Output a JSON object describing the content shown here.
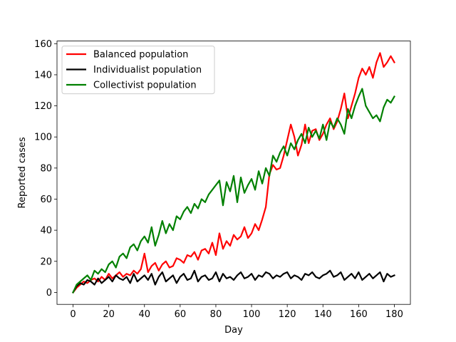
{
  "chart_data": {
    "type": "line",
    "title": "",
    "xlabel": "Day",
    "ylabel": "Reported cases",
    "xlim": [
      -9,
      189
    ],
    "ylim": [
      -7.7,
      161.7
    ],
    "xticks": [
      0,
      20,
      40,
      60,
      80,
      100,
      120,
      140,
      160,
      180
    ],
    "yticks": [
      0,
      20,
      40,
      60,
      80,
      100,
      120,
      140,
      160
    ],
    "grid": false,
    "legend_position": "upper-left",
    "series": [
      {
        "name": "Balanced population",
        "color": "#ff0000",
        "x": [
          0,
          2,
          4,
          6,
          8,
          10,
          12,
          14,
          16,
          18,
          20,
          22,
          24,
          26,
          28,
          30,
          32,
          34,
          36,
          38,
          40,
          42,
          44,
          46,
          48,
          50,
          52,
          54,
          56,
          58,
          60,
          62,
          64,
          66,
          68,
          70,
          72,
          74,
          76,
          78,
          80,
          82,
          84,
          86,
          88,
          90,
          92,
          94,
          96,
          98,
          100,
          102,
          104,
          106,
          108,
          110,
          112,
          114,
          116,
          118,
          120,
          122,
          124,
          126,
          128,
          130,
          132,
          134,
          136,
          138,
          140,
          142,
          144,
          146,
          148,
          150,
          152,
          154,
          156,
          158,
          160,
          162,
          164,
          166,
          168,
          170,
          172,
          174,
          176,
          178,
          180
        ],
        "y": [
          0,
          3,
          5,
          7,
          6,
          8,
          9,
          7,
          10,
          8,
          12,
          9,
          11,
          13,
          10,
          12,
          11,
          14,
          12,
          15,
          25,
          13,
          17,
          19,
          14,
          18,
          20,
          16,
          17,
          22,
          21,
          19,
          24,
          23,
          26,
          21,
          27,
          28,
          25,
          32,
          24,
          38,
          28,
          33,
          30,
          37,
          34,
          36,
          42,
          35,
          38,
          44,
          40,
          47,
          55,
          76,
          82,
          79,
          80,
          88,
          98,
          108,
          100,
          88,
          95,
          108,
          96,
          104,
          105,
          98,
          102,
          108,
          112,
          105,
          110,
          118,
          128,
          112,
          120,
          128,
          138,
          144,
          140,
          145,
          138,
          148,
          154,
          145,
          148,
          152,
          148
        ]
      },
      {
        "name": "Individualist population",
        "color": "#000000",
        "x": [
          0,
          2,
          4,
          6,
          8,
          10,
          12,
          14,
          16,
          18,
          20,
          22,
          24,
          26,
          28,
          30,
          32,
          34,
          36,
          38,
          40,
          42,
          44,
          46,
          48,
          50,
          52,
          54,
          56,
          58,
          60,
          62,
          64,
          66,
          68,
          70,
          72,
          74,
          76,
          78,
          80,
          82,
          84,
          86,
          88,
          90,
          92,
          94,
          96,
          98,
          100,
          102,
          104,
          106,
          108,
          110,
          112,
          114,
          116,
          118,
          120,
          122,
          124,
          126,
          128,
          130,
          132,
          134,
          136,
          138,
          140,
          142,
          144,
          146,
          148,
          150,
          152,
          154,
          156,
          158,
          160,
          162,
          164,
          166,
          168,
          170,
          172,
          174,
          176,
          178,
          180
        ],
        "y": [
          0,
          4,
          6,
          5,
          8,
          7,
          5,
          9,
          6,
          8,
          10,
          7,
          11,
          9,
          8,
          10,
          6,
          12,
          7,
          9,
          11,
          8,
          12,
          5,
          10,
          13,
          7,
          9,
          11,
          6,
          10,
          12,
          8,
          9,
          14,
          7,
          10,
          11,
          8,
          9,
          13,
          7,
          12,
          9,
          10,
          8,
          11,
          13,
          9,
          10,
          12,
          8,
          11,
          10,
          13,
          12,
          9,
          11,
          10,
          12,
          13,
          9,
          11,
          10,
          8,
          12,
          11,
          13,
          10,
          9,
          11,
          12,
          14,
          10,
          11,
          13,
          8,
          10,
          12,
          9,
          13,
          8,
          10,
          12,
          9,
          11,
          13,
          7,
          12,
          10,
          11
        ]
      },
      {
        "name": "Collectivist population",
        "color": "#008000",
        "x": [
          0,
          2,
          4,
          6,
          8,
          10,
          12,
          14,
          16,
          18,
          20,
          22,
          24,
          26,
          28,
          30,
          32,
          34,
          36,
          38,
          40,
          42,
          44,
          46,
          48,
          50,
          52,
          54,
          56,
          58,
          60,
          62,
          64,
          66,
          68,
          70,
          72,
          74,
          76,
          78,
          80,
          82,
          84,
          86,
          88,
          90,
          92,
          94,
          96,
          98,
          100,
          102,
          104,
          106,
          108,
          110,
          112,
          114,
          116,
          118,
          120,
          122,
          124,
          126,
          128,
          130,
          132,
          134,
          136,
          138,
          140,
          142,
          144,
          146,
          148,
          150,
          152,
          154,
          156,
          158,
          160,
          162,
          164,
          166,
          168,
          170,
          172,
          174,
          176,
          178,
          180
        ],
        "y": [
          0,
          5,
          7,
          9,
          11,
          8,
          14,
          12,
          15,
          13,
          18,
          20,
          16,
          23,
          25,
          22,
          29,
          31,
          27,
          33,
          36,
          32,
          42,
          30,
          37,
          46,
          38,
          44,
          40,
          49,
          47,
          52,
          55,
          51,
          57,
          54,
          60,
          58,
          63,
          66,
          69,
          72,
          56,
          71,
          65,
          75,
          58,
          74,
          64,
          69,
          73,
          66,
          78,
          70,
          80,
          75,
          88,
          84,
          90,
          94,
          88,
          96,
          92,
          98,
          102,
          96,
          106,
          100,
          104,
          99,
          108,
          98,
          110,
          106,
          112,
          108,
          102,
          118,
          112,
          120,
          126,
          131,
          120,
          116,
          112,
          114,
          110,
          119,
          124,
          122,
          126
        ]
      }
    ]
  }
}
